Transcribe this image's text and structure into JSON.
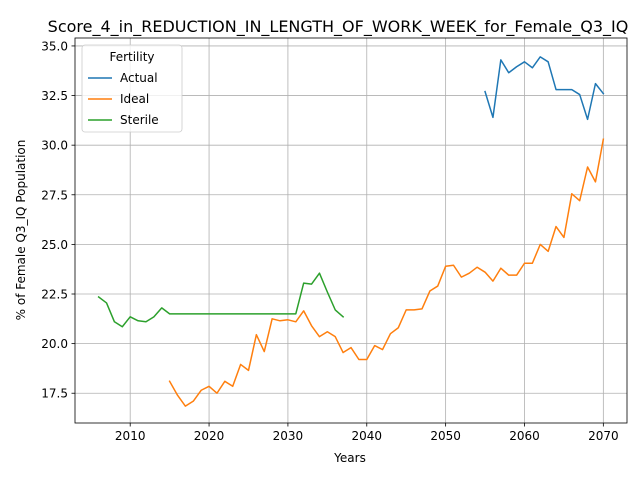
{
  "chart_data": {
    "type": "line",
    "title": "Score_4_in_REDUCTION_IN_LENGTH_OF_WORK_WEEK_for_Female_Q3_IQ",
    "xlabel": "Years",
    "ylabel": "% of Female Q3_IQ Population",
    "xlim": [
      2003,
      2073
    ],
    "ylim": [
      16.0,
      35.4
    ],
    "xticks": [
      2010,
      2020,
      2030,
      2040,
      2050,
      2060,
      2070
    ],
    "yticks": [
      17.5,
      20.0,
      22.5,
      25.0,
      27.5,
      30.0,
      32.5,
      35.0
    ],
    "ytick_labels": [
      "17.5",
      "20.0",
      "22.5",
      "25.0",
      "27.5",
      "30.0",
      "32.5",
      "35.0"
    ],
    "grid": true,
    "legend": {
      "title": "Fertility",
      "placement": "top-left"
    },
    "series": [
      {
        "name": "Actual",
        "color": "#1f77b4",
        "x": [
          2055,
          2056,
          2057,
          2058,
          2059,
          2060,
          2061,
          2062,
          2063,
          2064,
          2065,
          2066,
          2067,
          2068,
          2069,
          2070
        ],
        "values": [
          32.7,
          31.4,
          34.3,
          33.65,
          33.95,
          34.2,
          33.9,
          34.45,
          34.2,
          32.8,
          32.8,
          32.8,
          32.55,
          31.3,
          33.1,
          32.6
        ]
      },
      {
        "name": "Ideal",
        "color": "#ff7f0e",
        "x": [
          2015,
          2016,
          2017,
          2018,
          2019,
          2020,
          2021,
          2022,
          2023,
          2024,
          2025,
          2026,
          2027,
          2028,
          2029,
          2030,
          2031,
          2032,
          2033,
          2034,
          2035,
          2036,
          2037,
          2038,
          2039,
          2040,
          2041,
          2042,
          2043,
          2044,
          2045,
          2046,
          2047,
          2048,
          2049,
          2050,
          2051,
          2052,
          2053,
          2054,
          2055,
          2056,
          2057,
          2058,
          2059,
          2060,
          2061,
          2062,
          2063,
          2064,
          2065,
          2066,
          2067,
          2068,
          2069,
          2070
        ],
        "values": [
          18.1,
          17.4,
          16.85,
          17.1,
          17.65,
          17.85,
          17.5,
          18.1,
          17.85,
          18.95,
          18.65,
          20.45,
          19.6,
          21.25,
          21.15,
          21.2,
          21.1,
          21.65,
          20.9,
          20.35,
          20.6,
          20.35,
          19.55,
          19.8,
          19.2,
          19.2,
          19.9,
          19.7,
          20.5,
          20.8,
          21.7,
          21.7,
          21.75,
          22.65,
          22.9,
          23.9,
          23.95,
          23.35,
          23.55,
          23.85,
          23.6,
          23.15,
          23.8,
          23.45,
          23.45,
          24.05,
          24.05,
          25.0,
          24.65,
          25.9,
          25.35,
          27.55,
          27.2,
          28.9,
          28.15,
          30.3
        ]
      },
      {
        "name": "Sterile",
        "color": "#2ca02c",
        "x": [
          2006,
          2007,
          2008,
          2009,
          2010,
          2011,
          2012,
          2013,
          2014,
          2015,
          2016,
          2017,
          2018,
          2019,
          2020,
          2021,
          2022,
          2023,
          2024,
          2025,
          2026,
          2027,
          2028,
          2029,
          2030,
          2031,
          2032,
          2033,
          2034,
          2035,
          2036,
          2037
        ],
        "values": [
          22.35,
          22.05,
          21.1,
          20.85,
          21.35,
          21.15,
          21.1,
          21.35,
          21.8,
          21.5,
          21.5,
          21.5,
          21.5,
          21.5,
          21.5,
          21.5,
          21.5,
          21.5,
          21.5,
          21.5,
          21.5,
          21.5,
          21.5,
          21.5,
          21.5,
          21.5,
          23.05,
          23.0,
          23.55,
          22.6,
          21.7,
          21.35
        ]
      }
    ]
  }
}
